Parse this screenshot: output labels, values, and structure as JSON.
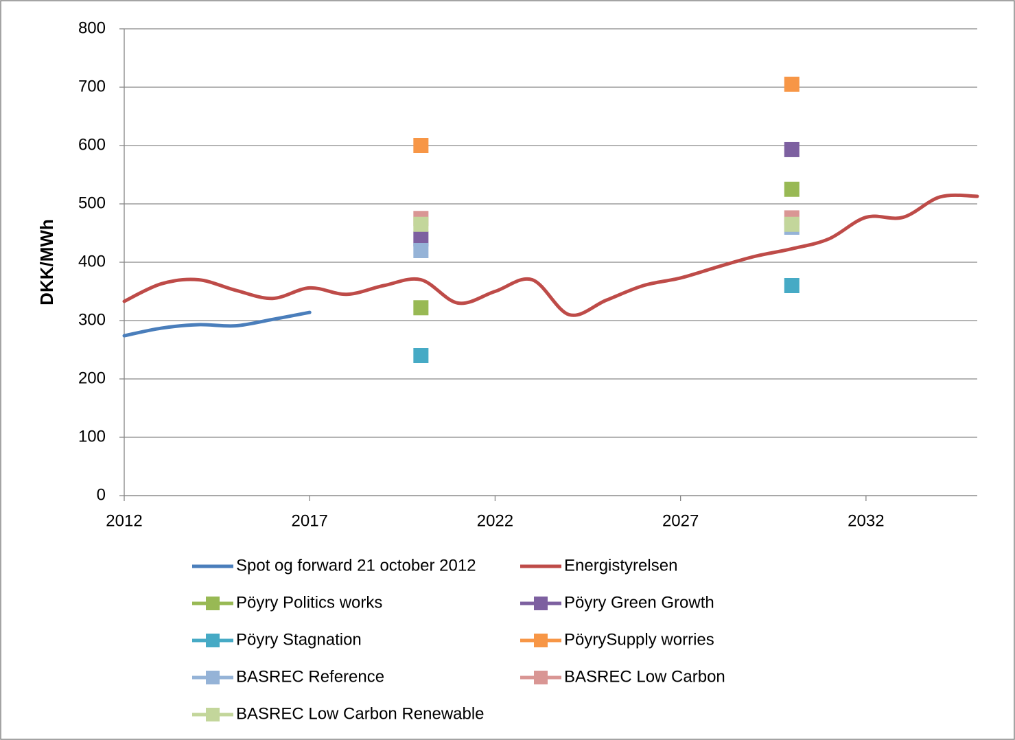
{
  "chart_data": {
    "type": "line",
    "y_label": "DKK/MWh",
    "xlim": [
      2012,
      2035
    ],
    "xticks": [
      2012,
      2017,
      2022,
      2027,
      2032
    ],
    "ylim": [
      0,
      800
    ],
    "yticks": [
      0,
      100,
      200,
      300,
      400,
      500,
      600,
      700,
      800
    ],
    "grid": true,
    "legend": "bottom",
    "series": [
      {
        "name": "Spot og forward 21 october 2012",
        "color": "#4a7ebb",
        "mode": "line",
        "x": [
          2012,
          2013,
          2014,
          2015,
          2016,
          2017
        ],
        "values": [
          274,
          287,
          293,
          291,
          302,
          314
        ]
      },
      {
        "name": "Energistyrelsen",
        "color": "#be4b48",
        "mode": "line",
        "x": [
          2012,
          2013,
          2014,
          2015,
          2016,
          2017,
          2018,
          2019,
          2020,
          2021,
          2022,
          2023,
          2024,
          2025,
          2026,
          2027,
          2028,
          2029,
          2030,
          2031,
          2032,
          2033,
          2034,
          2035
        ],
        "values": [
          333,
          363,
          370,
          352,
          338,
          356,
          345,
          360,
          370,
          330,
          350,
          370,
          310,
          335,
          360,
          373,
          392,
          410,
          423,
          440,
          477,
          477,
          512,
          513
        ]
      },
      {
        "name": "Pöyry Politics works",
        "color": "#98b954",
        "mode": "markers",
        "x": [
          2020,
          2030
        ],
        "values": [
          322,
          525
        ]
      },
      {
        "name": "Pöyry Green Growth",
        "color": "#7d60a0",
        "mode": "markers",
        "x": [
          2020,
          2030
        ],
        "values": [
          440,
          593
        ]
      },
      {
        "name": "Pöyry Stagnation",
        "color": "#46aac5",
        "mode": "markers",
        "x": [
          2020,
          2030
        ],
        "values": [
          240,
          360
        ]
      },
      {
        "name": "PöyrySupply worries",
        "color": "#f79646",
        "mode": "markers",
        "x": [
          2020,
          2030
        ],
        "values": [
          600,
          705
        ]
      },
      {
        "name": "BASREC Reference",
        "color": "#95b3d7",
        "mode": "markers",
        "x": [
          2020,
          2030
        ],
        "values": [
          420,
          460
        ]
      },
      {
        "name": "BASREC Low Carbon",
        "color": "#d99694",
        "mode": "markers",
        "x": [
          2020,
          2030
        ],
        "values": [
          475,
          476
        ]
      },
      {
        "name": "BASREC Low Carbon Renewable",
        "color": "#c3d69b",
        "mode": "markers",
        "x": [
          2020,
          2030
        ],
        "values": [
          465,
          465
        ]
      }
    ]
  }
}
